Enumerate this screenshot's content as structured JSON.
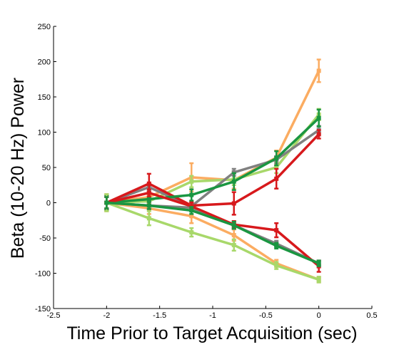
{
  "chart_data": {
    "type": "line",
    "xlabel": "Time Prior to Target Acquisition (sec)",
    "ylabel": "Beta (10-20 Hz) Power",
    "xlim": [
      -2.5,
      0.5
    ],
    "ylim": [
      -150,
      250
    ],
    "xticks": [
      "-2.5",
      "-2",
      "-1.5",
      "-1",
      "-0.5",
      "0",
      "0.5"
    ],
    "yticks": [
      "-150",
      "-100",
      "-50",
      "0",
      "50",
      "100",
      "150",
      "200",
      "250"
    ],
    "grid": false,
    "x": [
      -2,
      -1.6,
      -1.2,
      -0.8,
      -0.4,
      0
    ],
    "series": [
      {
        "color": "#fbac61",
        "values": [
          0,
          8,
          36,
          32,
          64,
          187
        ],
        "errors": [
          12,
          8,
          20,
          12,
          10,
          16
        ]
      },
      {
        "color": "#a8d86a",
        "values": [
          0,
          2,
          30,
          33,
          50,
          125
        ],
        "errors": [
          12,
          10,
          8,
          8,
          8,
          8
        ]
      },
      {
        "color": "#808080",
        "values": [
          0,
          22,
          -5,
          43,
          61,
          103
        ],
        "errors": [
          10,
          5,
          4,
          5,
          5,
          6
        ]
      },
      {
        "color": "#d7191c",
        "values": [
          0,
          27,
          -4,
          -1,
          34,
          97
        ],
        "errors": [
          8,
          14,
          5,
          16,
          14,
          6
        ]
      },
      {
        "color": "#1a9641",
        "values": [
          0,
          5,
          11,
          30,
          63,
          120
        ],
        "errors": [
          10,
          8,
          8,
          12,
          10,
          12
        ]
      },
      {
        "color": "#fbac61",
        "values": [
          0,
          -8,
          -19,
          -46,
          -86,
          -109
        ],
        "errors": [
          12,
          8,
          10,
          8,
          5,
          4
        ]
      },
      {
        "color": "#a8d86a",
        "values": [
          0,
          -22,
          -42,
          -60,
          -89,
          -109
        ],
        "errors": [
          12,
          10,
          6,
          8,
          5,
          4
        ]
      },
      {
        "color": "#808080",
        "values": [
          0,
          -4,
          -7,
          -32,
          -58,
          -86
        ],
        "errors": [
          8,
          5,
          5,
          5,
          4,
          4
        ]
      },
      {
        "color": "#d7191c",
        "values": [
          0,
          14,
          -5,
          -31,
          -39,
          -90
        ],
        "errors": [
          8,
          5,
          5,
          5,
          10,
          8
        ]
      },
      {
        "color": "#1a9641",
        "values": [
          0,
          -4,
          -11,
          -32,
          -61,
          -86
        ],
        "errors": [
          8,
          5,
          5,
          5,
          4,
          4
        ]
      }
    ]
  }
}
